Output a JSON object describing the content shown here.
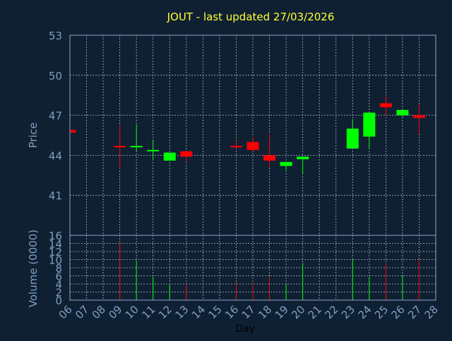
{
  "chart_data": [
    {
      "type": "candlestick",
      "title": "JOUT - last updated 27/03/2026",
      "ylabel": "Price",
      "ylim": [
        38,
        53
      ],
      "yticks": [
        41,
        44,
        47,
        50,
        53
      ],
      "grid": true,
      "candles": [
        {
          "day": "06",
          "open": 45.9,
          "close": 45.7,
          "high": 45.9,
          "low": 45.7
        },
        {
          "day": "09",
          "open": 44.7,
          "close": 44.6,
          "high": 46.3,
          "low": 43.0
        },
        {
          "day": "10",
          "open": 44.6,
          "close": 44.7,
          "high": 46.3,
          "low": 44.3
        },
        {
          "day": "11",
          "open": 44.3,
          "close": 44.4,
          "high": 45.1,
          "low": 43.7
        },
        {
          "day": "12",
          "open": 43.6,
          "close": 44.2,
          "high": 44.2,
          "low": 43.6
        },
        {
          "day": "13",
          "open": 44.3,
          "close": 43.9,
          "high": 44.3,
          "low": 43.5
        },
        {
          "day": "16",
          "open": 44.7,
          "close": 44.6,
          "high": 45.1,
          "low": 44.5
        },
        {
          "day": "17",
          "open": 45.0,
          "close": 44.4,
          "high": 45.4,
          "low": 44.3
        },
        {
          "day": "18",
          "open": 44.0,
          "close": 43.6,
          "high": 45.6,
          "low": 43.1
        },
        {
          "day": "19",
          "open": 43.2,
          "close": 43.5,
          "high": 43.5,
          "low": 42.9
        },
        {
          "day": "20",
          "open": 43.7,
          "close": 43.9,
          "high": 43.9,
          "low": 42.6
        },
        {
          "day": "23",
          "open": 44.5,
          "close": 46.0,
          "high": 46.7,
          "low": 44.5
        },
        {
          "day": "24",
          "open": 45.4,
          "close": 47.2,
          "high": 47.2,
          "low": 44.5
        },
        {
          "day": "25",
          "open": 47.9,
          "close": 47.6,
          "high": 48.4,
          "low": 47.0
        },
        {
          "day": "26",
          "open": 47.0,
          "close": 47.4,
          "high": 47.4,
          "low": 46.9
        },
        {
          "day": "27",
          "open": 47.0,
          "close": 46.8,
          "high": 47.8,
          "low": 45.6
        }
      ],
      "colors": {
        "up": "#00ff00",
        "down": "#ff0000"
      }
    },
    {
      "type": "bar",
      "ylabel": "Volume (0000)",
      "xlabel": "Day",
      "ylim": [
        0,
        16
      ],
      "yticks": [
        0,
        2,
        4,
        6,
        8,
        10,
        12,
        14,
        16
      ],
      "x_tick_labels": [
        "06",
        "07",
        "08",
        "09",
        "10",
        "11",
        "12",
        "13",
        "14",
        "15",
        "16",
        "17",
        "18",
        "19",
        "20",
        "21",
        "22",
        "23",
        "24",
        "25",
        "26",
        "27",
        "28"
      ],
      "volumes": [
        {
          "day": "09",
          "value": 14.0,
          "direction": "down"
        },
        {
          "day": "10",
          "value": 9.8,
          "direction": "up"
        },
        {
          "day": "11",
          "value": 5.8,
          "direction": "up"
        },
        {
          "day": "12",
          "value": 4.0,
          "direction": "up"
        },
        {
          "day": "13",
          "value": 3.8,
          "direction": "down"
        },
        {
          "day": "16",
          "value": 4.0,
          "direction": "down"
        },
        {
          "day": "17",
          "value": 4.2,
          "direction": "down"
        },
        {
          "day": "18",
          "value": 5.8,
          "direction": "down"
        },
        {
          "day": "19",
          "value": 3.8,
          "direction": "up"
        },
        {
          "day": "20",
          "value": 9.2,
          "direction": "up"
        },
        {
          "day": "23",
          "value": 10.2,
          "direction": "up"
        },
        {
          "day": "24",
          "value": 5.8,
          "direction": "up"
        },
        {
          "day": "25",
          "value": 9.0,
          "direction": "down"
        },
        {
          "day": "26",
          "value": 6.2,
          "direction": "up"
        },
        {
          "day": "27",
          "value": 10.0,
          "direction": "down"
        }
      ]
    }
  ],
  "colors": {
    "background": "#0f2033",
    "title": "#ffff33",
    "axis_text": "#7f9fc0",
    "grid": "#a8b8c8",
    "frame": "#8aa6c8"
  }
}
